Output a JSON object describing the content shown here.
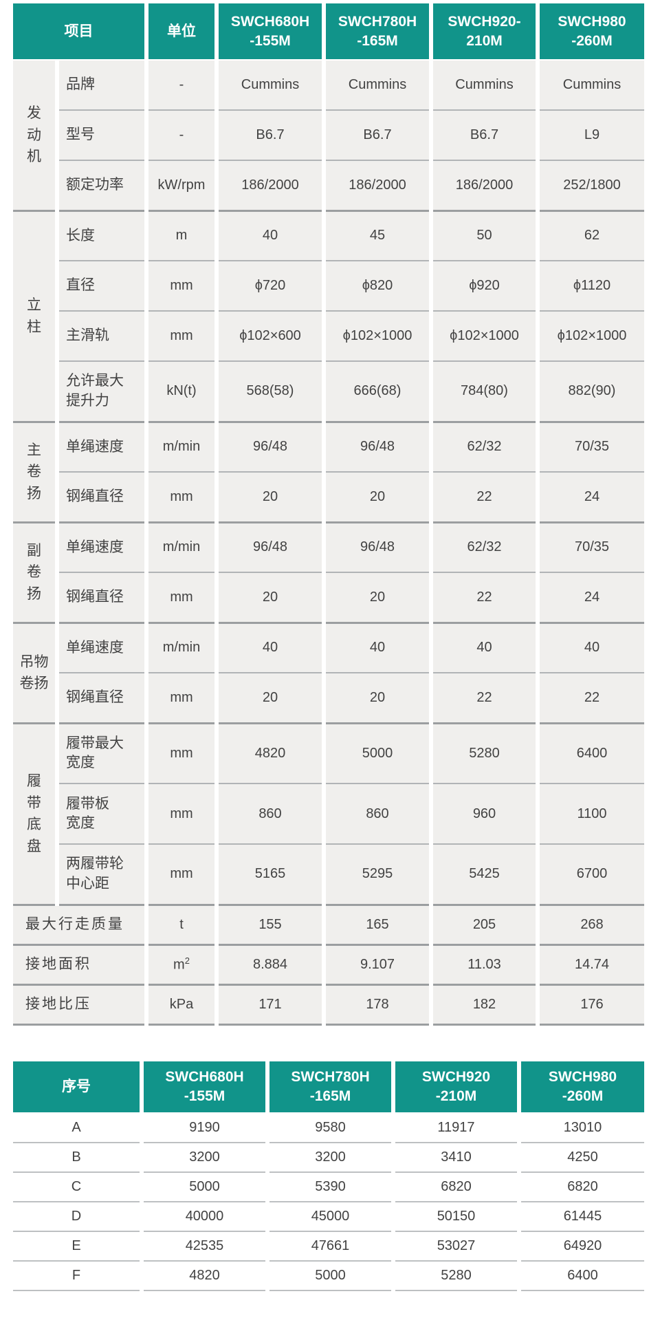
{
  "colors": {
    "teal": "#11948A",
    "cell_background": "#F0EFED",
    "text": "#424242",
    "separator_light": "#B1B4B6",
    "separator_dark": "#9B9EA0",
    "table2_separator": "#BDC0C2"
  },
  "spec_table": {
    "header": {
      "item": "项目",
      "unit": "单位",
      "models": [
        "SWCH680H\n-155M",
        "SWCH780H\n-165M",
        "SWCH920-\n210M",
        "SWCH980\n-260M"
      ]
    },
    "groups": [
      {
        "name": "发\n动\n机",
        "rows": [
          {
            "label": "品牌",
            "unit": "-",
            "values": [
              "Cummins",
              "Cummins",
              "Cummins",
              "Cummins"
            ]
          },
          {
            "label": "型号",
            "unit": "-",
            "values": [
              "B6.7",
              "B6.7",
              "B6.7",
              "L9"
            ]
          },
          {
            "label": "额定功率",
            "unit": "kW/rpm",
            "values": [
              "186/2000",
              "186/2000",
              "186/2000",
              "252/1800"
            ]
          }
        ]
      },
      {
        "name": "立\n柱",
        "rows": [
          {
            "label": "长度",
            "unit": "m",
            "values": [
              "40",
              "45",
              "50",
              "62"
            ]
          },
          {
            "label": "直径",
            "unit": "mm",
            "values": [
              "ϕ720",
              "ϕ820",
              "ϕ920",
              "ϕ1120"
            ]
          },
          {
            "label": "主滑轨",
            "unit": "mm",
            "values": [
              "ϕ102×600",
              "ϕ102×1000",
              "ϕ102×1000",
              "ϕ102×1000"
            ]
          },
          {
            "label": "允许最大\n提升力",
            "unit": "kN(t)",
            "values": [
              "568(58)",
              "666(68)",
              "784(80)",
              "882(90)"
            ]
          }
        ]
      },
      {
        "name": "主\n卷\n扬",
        "rows": [
          {
            "label": "单绳速度",
            "unit": "m/min",
            "values": [
              "96/48",
              "96/48",
              "62/32",
              "70/35"
            ]
          },
          {
            "label": "钢绳直径",
            "unit": "mm",
            "values": [
              "20",
              "20",
              "22",
              "24"
            ]
          }
        ]
      },
      {
        "name": "副\n卷\n扬",
        "rows": [
          {
            "label": "单绳速度",
            "unit": "m/min",
            "values": [
              "96/48",
              "96/48",
              "62/32",
              "70/35"
            ]
          },
          {
            "label": "钢绳直径",
            "unit": "mm",
            "values": [
              "20",
              "20",
              "22",
              "24"
            ]
          }
        ]
      },
      {
        "name": "吊物\n卷扬",
        "rows": [
          {
            "label": "单绳速度",
            "unit": "m/min",
            "values": [
              "40",
              "40",
              "40",
              "40"
            ]
          },
          {
            "label": "钢绳直径",
            "unit": "mm",
            "values": [
              "20",
              "20",
              "22",
              "22"
            ]
          }
        ]
      },
      {
        "name": "履\n带\n底\n盘",
        "rows": [
          {
            "label": "履带最大\n宽度",
            "unit": "mm",
            "values": [
              "4820",
              "5000",
              "5280",
              "6400"
            ]
          },
          {
            "label": "履带板\n宽度",
            "unit": "mm",
            "values": [
              "860",
              "860",
              "960",
              "1100"
            ]
          },
          {
            "label": "两履带轮\n中心距",
            "unit": "mm",
            "values": [
              "5165",
              "5295",
              "5425",
              "6700"
            ]
          }
        ]
      }
    ],
    "summary_rows": [
      {
        "label": "最大行走质量",
        "unit": "t",
        "values": [
          "155",
          "165",
          "205",
          "268"
        ]
      },
      {
        "label": "接地面积",
        "unit": "m²",
        "values": [
          "8.884",
          "9.107",
          "11.03",
          "14.74"
        ]
      },
      {
        "label": "接地比压",
        "unit": "kPa",
        "values": [
          "171",
          "178",
          "182",
          "176"
        ]
      }
    ]
  },
  "dim_table": {
    "header": {
      "serial": "序号",
      "models": [
        "SWCH680H\n-155M",
        "SWCH780H\n-165M",
        "SWCH920\n-210M",
        "SWCH980\n-260M"
      ]
    },
    "rows": [
      {
        "label": "A",
        "values": [
          "9190",
          "9580",
          "11917",
          "13010"
        ]
      },
      {
        "label": "B",
        "values": [
          "3200",
          "3200",
          "3410",
          "4250"
        ]
      },
      {
        "label": "C",
        "values": [
          "5000",
          "5390",
          "6820",
          "6820"
        ]
      },
      {
        "label": "D",
        "values": [
          "40000",
          "45000",
          "50150",
          "61445"
        ]
      },
      {
        "label": "E",
        "values": [
          "42535",
          "47661",
          "53027",
          "64920"
        ]
      },
      {
        "label": "F",
        "values": [
          "4820",
          "5000",
          "5280",
          "6400"
        ]
      }
    ]
  }
}
